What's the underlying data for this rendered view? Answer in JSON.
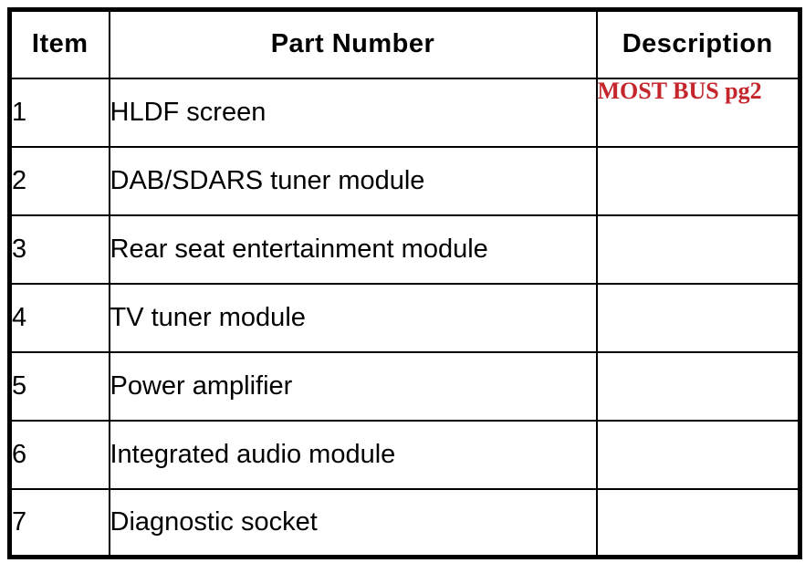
{
  "table": {
    "headers": {
      "item": "Item",
      "part": "Part Number",
      "description": "Description"
    },
    "rows": [
      {
        "item": "1",
        "part": "HLDF screen",
        "description": "MOST BUS pg2"
      },
      {
        "item": "2",
        "part": "DAB/SDARS tuner module",
        "description": ""
      },
      {
        "item": "3",
        "part": "Rear seat entertainment module",
        "description": ""
      },
      {
        "item": "4",
        "part": "TV tuner module",
        "description": ""
      },
      {
        "item": "5",
        "part": "Power amplifier",
        "description": ""
      },
      {
        "item": "6",
        "part": "Integrated audio module",
        "description": ""
      },
      {
        "item": "7",
        "part": "Diagnostic socket",
        "description": ""
      }
    ]
  },
  "colors": {
    "description_red": "#c4262c",
    "border_black": "#000000",
    "background": "#ffffff"
  }
}
